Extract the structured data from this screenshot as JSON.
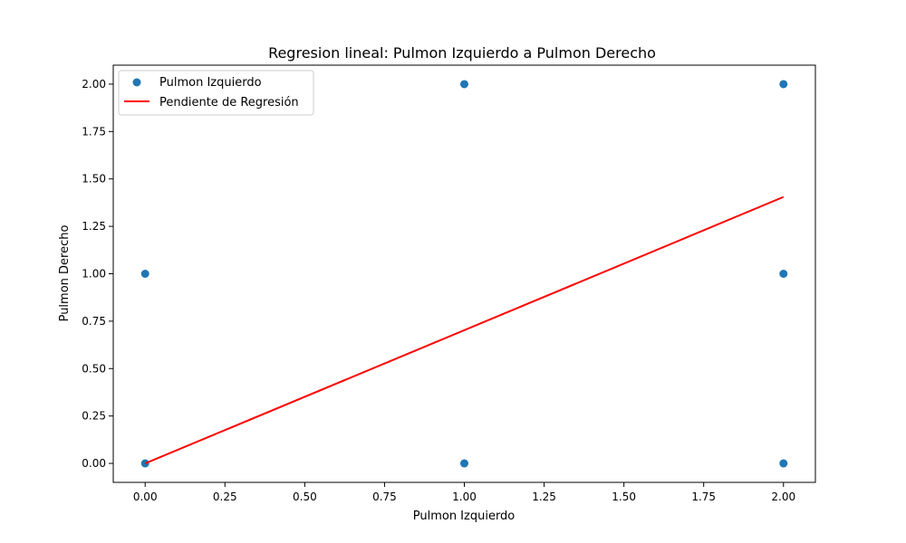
{
  "chart_data": {
    "type": "scatter",
    "title": "Regresion lineal: Pulmon Izquierdo a Pulmon Derecho",
    "xlabel": "Pulmon Izquierdo",
    "ylabel": "Pulmon Derecho",
    "xlim": [
      -0.1,
      2.1
    ],
    "ylim": [
      -0.1,
      2.1
    ],
    "xticks": [
      "0.00",
      "0.25",
      "0.50",
      "0.75",
      "1.00",
      "1.25",
      "1.50",
      "1.75",
      "2.00"
    ],
    "yticks": [
      "0.00",
      "0.25",
      "0.50",
      "0.75",
      "1.00",
      "1.25",
      "1.50",
      "1.75",
      "2.00"
    ],
    "grid": false,
    "legend_position": "top-left",
    "series": [
      {
        "name": "Pulmon Izquierdo",
        "kind": "scatter",
        "color": "#1f77b4",
        "points": [
          {
            "x": 0,
            "y": 0
          },
          {
            "x": 0,
            "y": 1
          },
          {
            "x": 1,
            "y": 0
          },
          {
            "x": 1,
            "y": 2
          },
          {
            "x": 2,
            "y": 0
          },
          {
            "x": 2,
            "y": 1
          },
          {
            "x": 2,
            "y": 2
          }
        ]
      },
      {
        "name": "Pendiente de Regresión",
        "kind": "line",
        "color": "#ff0000",
        "points": [
          {
            "x": 0,
            "y": 0
          },
          {
            "x": 2,
            "y": 1.405
          }
        ]
      }
    ]
  }
}
